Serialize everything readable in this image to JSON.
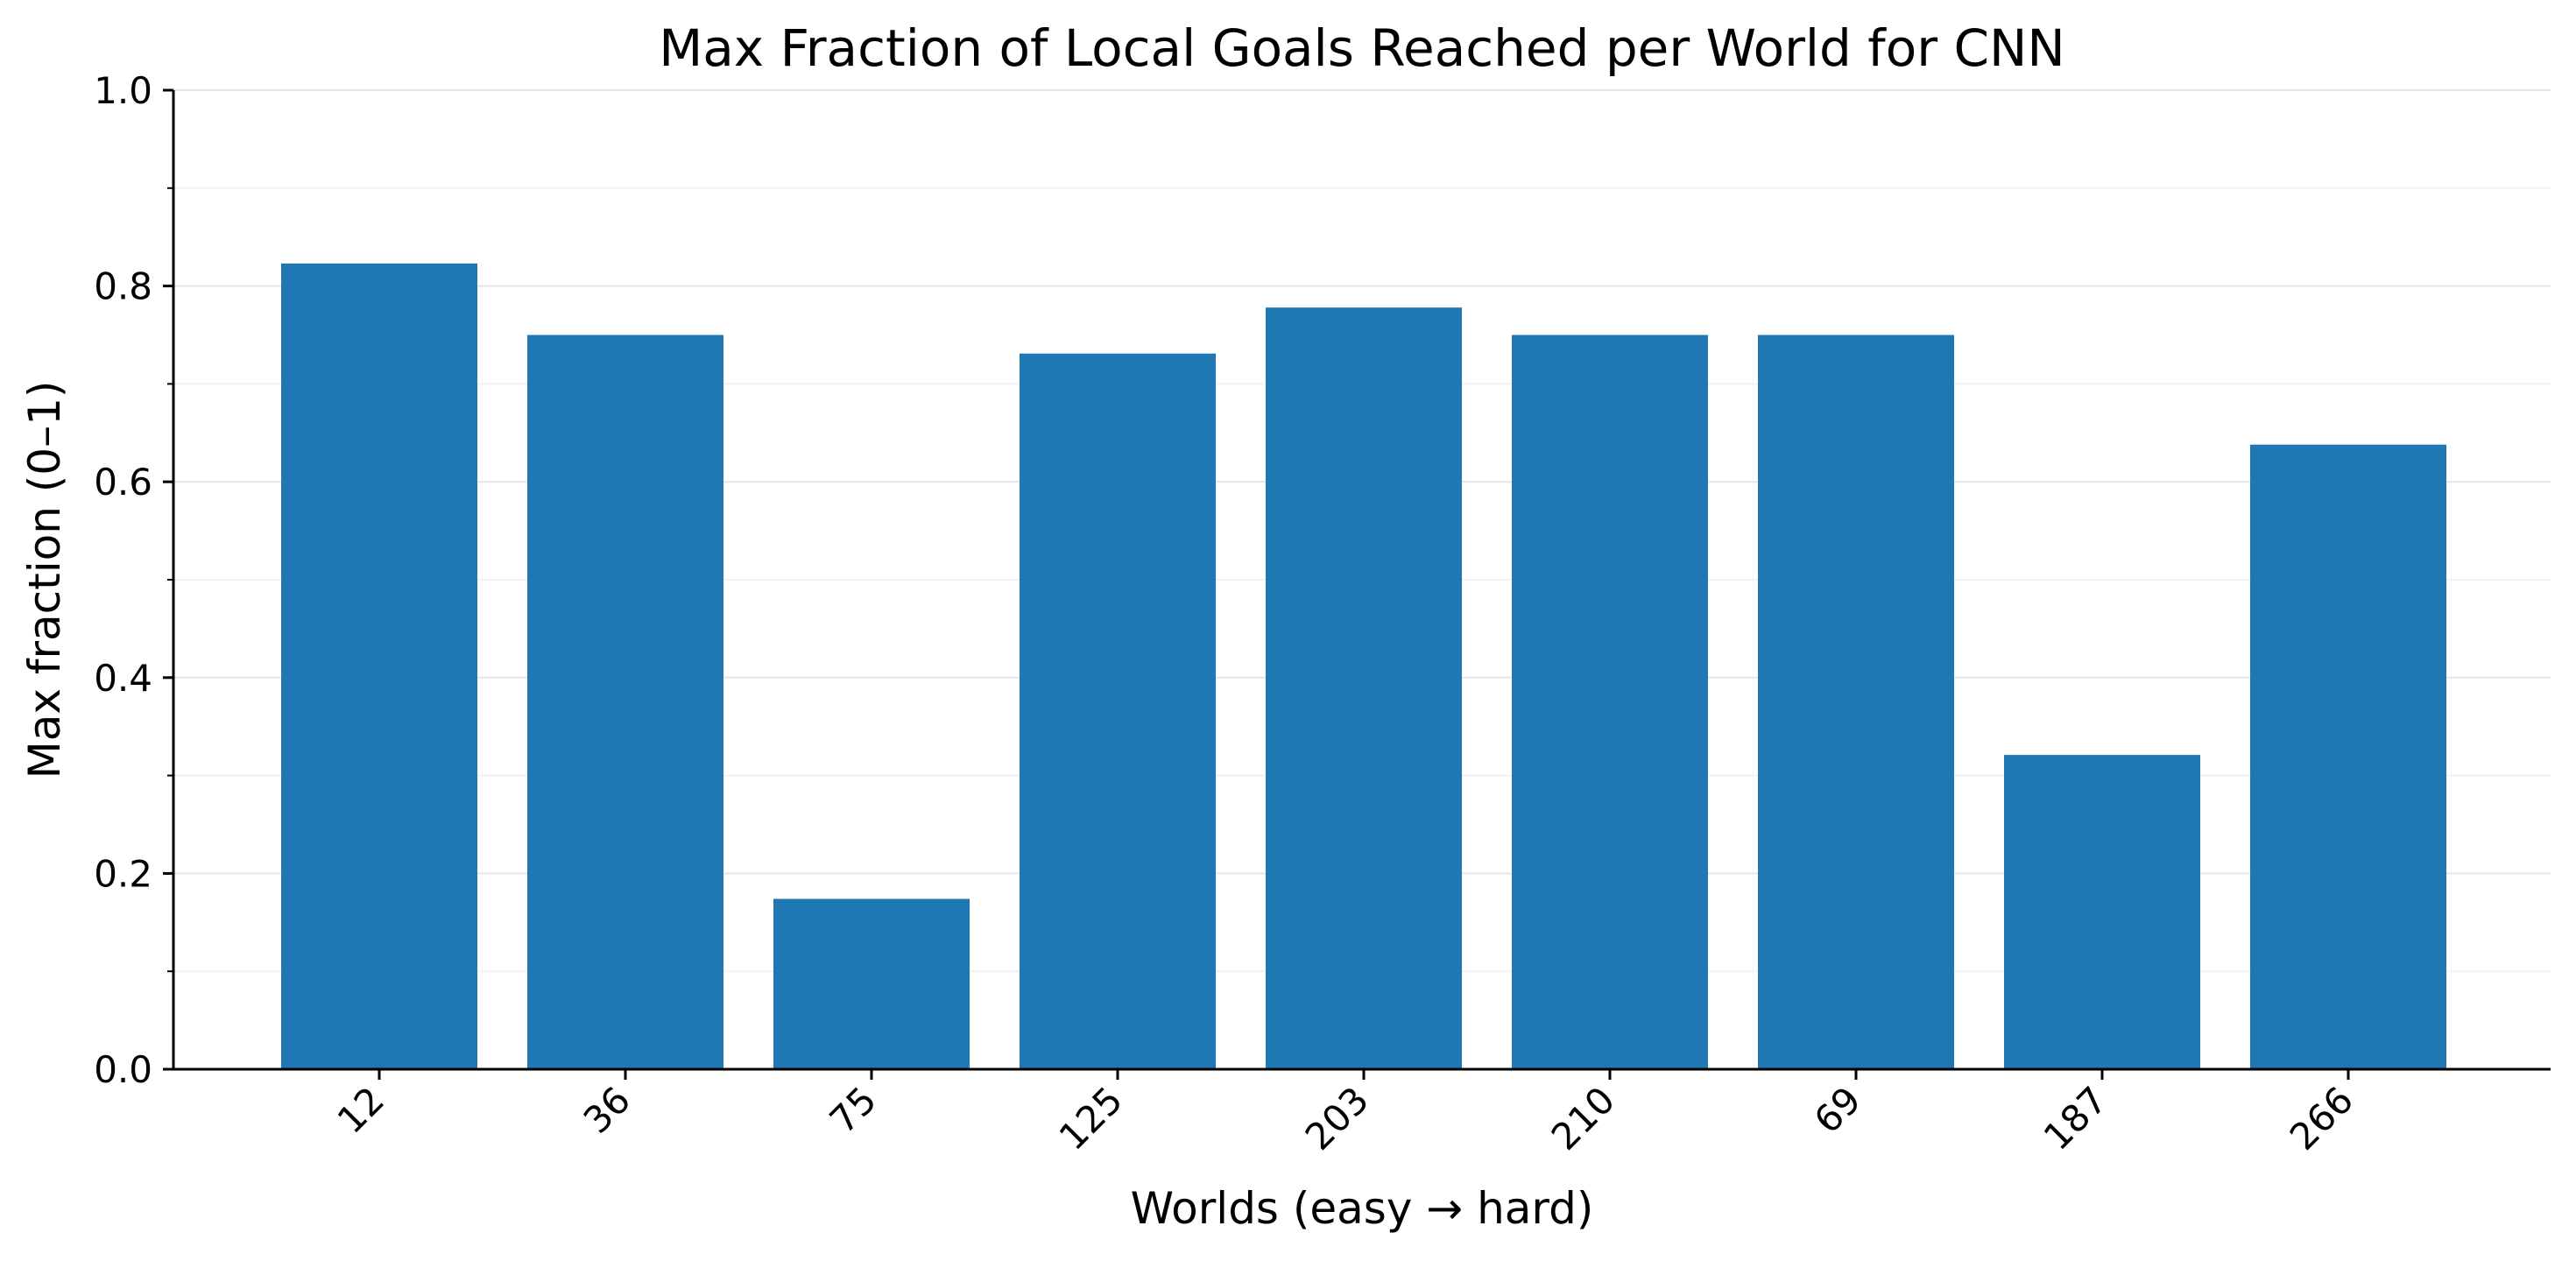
{
  "chart_data": {
    "type": "bar",
    "title": "Max Fraction of Local Goals Reached per World for CNN",
    "xlabel": "Worlds (easy → hard)",
    "ylabel": "Max fraction (0–1)",
    "categories": [
      "12",
      "36",
      "75",
      "125",
      "203",
      "210",
      "69",
      "187",
      "266"
    ],
    "values": [
      0.823,
      0.75,
      0.174,
      0.731,
      0.778,
      0.75,
      0.75,
      0.321,
      0.638
    ],
    "ylim": [
      0,
      1.0
    ],
    "yticks": [
      "0.0",
      "0.2",
      "0.4",
      "0.6",
      "0.8",
      "1.0"
    ],
    "ytick_values": [
      0,
      0.2,
      0.4,
      0.6,
      0.8,
      1.0
    ],
    "y_minor_ticks": [
      0.1,
      0.3,
      0.5,
      0.7,
      0.9
    ],
    "grid": "horizontal",
    "legend": "none",
    "bar_color": "#1f77b4",
    "grid_color": "#e6e6e6"
  }
}
